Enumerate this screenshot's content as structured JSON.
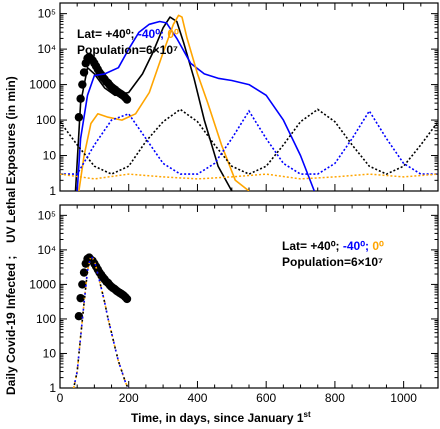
{
  "chart_data": [
    {
      "type": "line",
      "panel": "top",
      "xlim": [
        0,
        1100
      ],
      "ylim_log10": [
        0,
        5.3
      ],
      "yscale": "log",
      "legend": {
        "lat_prefix": "Lat=",
        "lat_values": [
          "+40⁰;",
          "-40⁰;",
          "0⁰"
        ],
        "population": "Population=6×10⁷",
        "placement": "top-left"
      },
      "colors": {
        "lat_plus40": "#000000",
        "lat_minus40": "#0000ff",
        "lat_0": "#ffa500",
        "observed": "#000000"
      },
      "series": [
        {
          "key": "observed",
          "x": [
            55,
            60,
            65,
            70,
            75,
            80,
            85,
            90,
            95,
            100,
            105,
            110,
            115,
            120,
            125,
            130,
            135,
            140,
            145,
            150,
            155,
            160,
            165,
            170,
            175,
            180,
            185,
            190,
            195
          ],
          "y": [
            120,
            400,
            1000,
            2200,
            4000,
            5500,
            6000,
            5200,
            4800,
            4000,
            3300,
            2700,
            2200,
            1900,
            1600,
            1400,
            1200,
            1100,
            950,
            850,
            780,
            720,
            650,
            600,
            560,
            520,
            480,
            430,
            380
          ]
        },
        {
          "key": "lat_plus40",
          "x": [
            45,
            60,
            80,
            100,
            130,
            160,
            200,
            240,
            270,
            300,
            320,
            340,
            360,
            390,
            420,
            460,
            500
          ],
          "y": [
            1,
            300,
            3000,
            2000,
            800,
            500,
            600,
            2000,
            8000,
            40000,
            80000,
            60000,
            15000,
            1500,
            100,
            5,
            1
          ]
        },
        {
          "key": "lat_minus40",
          "x": [
            50,
            60,
            80,
            100,
            130,
            170,
            200,
            230,
            260,
            290,
            310,
            340,
            380,
            420,
            460,
            500,
            550,
            600,
            650,
            700,
            740
          ],
          "y": [
            1,
            30,
            500,
            1800,
            2000,
            3000,
            10000,
            30000,
            50000,
            60000,
            55000,
            20000,
            4000,
            2000,
            1500,
            1300,
            1000,
            500,
            100,
            10,
            1
          ]
        },
        {
          "key": "lat_0",
          "x": [
            55,
            70,
            90,
            110,
            140,
            180,
            220,
            260,
            300,
            330,
            345,
            355,
            370,
            400,
            430,
            470,
            510,
            550
          ],
          "y": [
            1,
            10,
            80,
            150,
            120,
            100,
            150,
            600,
            8000,
            50000,
            90000,
            80000,
            20000,
            2000,
            300,
            20,
            2,
            1
          ]
        },
        {
          "key": "uv_plus40",
          "x": [
            0,
            50,
            100,
            150,
            200,
            250,
            300,
            350,
            400,
            450,
            500,
            550,
            600,
            650,
            700,
            750,
            800,
            850,
            900,
            950,
            1000,
            1050,
            1100
          ],
          "y": [
            90,
            20,
            5,
            3,
            5,
            25,
            90,
            200,
            90,
            20,
            5,
            3,
            5,
            20,
            90,
            200,
            90,
            20,
            5,
            3,
            5,
            20,
            90
          ]
        },
        {
          "key": "uv_minus40",
          "x": [
            0,
            50,
            100,
            150,
            200,
            250,
            300,
            350,
            400,
            450,
            500,
            550,
            600,
            650,
            700,
            750,
            800,
            850,
            900,
            950,
            1000,
            1050,
            1100
          ],
          "y": [
            3,
            3,
            20,
            100,
            150,
            30,
            6,
            3,
            3,
            6,
            30,
            180,
            30,
            6,
            3,
            3,
            6,
            30,
            180,
            30,
            6,
            3,
            3
          ]
        },
        {
          "key": "uv_0",
          "x": [
            0,
            100,
            200,
            300,
            400,
            500,
            600,
            700,
            800,
            900,
            1000,
            1100
          ],
          "y": [
            3,
            2.2,
            3,
            2.5,
            2.2,
            2.5,
            3,
            2.2,
            2.5,
            3,
            2.5,
            3
          ]
        }
      ]
    },
    {
      "type": "line",
      "panel": "bottom",
      "xlim": [
        0,
        1100
      ],
      "ylim_log10": [
        0,
        5.3
      ],
      "yscale": "log",
      "legend": {
        "lat_prefix": "Lat=",
        "lat_values": [
          "+40⁰;",
          "-40⁰;",
          "0⁰"
        ],
        "population": "Population=6×10⁷",
        "placement": "top-right"
      },
      "series": [
        {
          "key": "observed",
          "x": [
            55,
            60,
            65,
            70,
            75,
            80,
            85,
            90,
            95,
            100,
            105,
            110,
            115,
            120,
            125,
            130,
            135,
            140,
            145,
            150,
            155,
            160,
            165,
            170,
            175,
            180,
            185,
            190,
            195
          ],
          "y": [
            120,
            400,
            1000,
            2200,
            4000,
            5500,
            6000,
            5200,
            4800,
            4000,
            3300,
            2700,
            2200,
            1900,
            1600,
            1400,
            1200,
            1100,
            950,
            850,
            780,
            720,
            650,
            600,
            560,
            520,
            480,
            430,
            380
          ]
        },
        {
          "key": "model_daily",
          "x": [
            40,
            50,
            60,
            70,
            80,
            90,
            100,
            110,
            120,
            130,
            140,
            150,
            160,
            170,
            180,
            190,
            198
          ],
          "y": [
            1,
            3,
            30,
            300,
            2500,
            6500,
            5000,
            2000,
            800,
            300,
            100,
            40,
            15,
            6,
            3,
            1.5,
            1
          ]
        }
      ]
    }
  ],
  "axes": {
    "xlabel_main": "Time, in days, since January 1",
    "xlabel_sup": "st",
    "ylabel_top": "UV Lethal Exposures (in min)",
    "ylabel_bottom": "Daily Covid-19 Infected ;",
    "x_ticks": [
      "0",
      "200",
      "400",
      "600",
      "800",
      "1000"
    ],
    "y_ticks": [
      "1",
      "10",
      "100",
      "1000",
      "10⁴",
      "10⁵"
    ]
  }
}
